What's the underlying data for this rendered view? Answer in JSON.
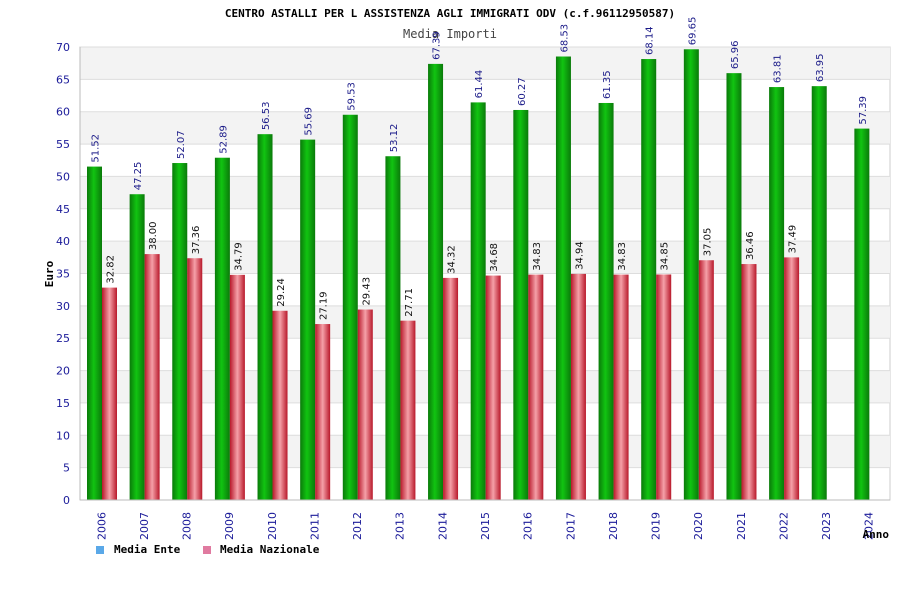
{
  "chart_data": {
    "type": "bar",
    "title": "CENTRO ASTALLI PER L ASSISTENZA AGLI IMMIGRATI ODV (c.f.96112950587)",
    "subtitle": "Media Importi",
    "xlabel": "Anno",
    "ylabel": "Euro",
    "ylim": [
      0,
      70
    ],
    "ytick_step": 5,
    "grid": true,
    "legend_position": "bottom-left",
    "categories": [
      "2006",
      "2007",
      "2008",
      "2009",
      "2010",
      "2011",
      "2012",
      "2013",
      "2014",
      "2015",
      "2016",
      "2017",
      "2018",
      "2019",
      "2020",
      "2021",
      "2022",
      "2023",
      "2024"
    ],
    "series": [
      {
        "name": "Media Ente",
        "values": [
          51.52,
          47.25,
          52.07,
          52.89,
          56.53,
          55.69,
          59.53,
          53.12,
          67.39,
          61.44,
          60.27,
          68.53,
          61.35,
          68.14,
          69.65,
          65.96,
          63.81,
          63.95,
          57.39
        ],
        "labels": [
          "51.52",
          "47.25",
          "52.07",
          "52.89",
          "56.53",
          "55.69",
          "59.53",
          "53.12",
          "67.39",
          "61.44",
          "60.27",
          "68.53",
          "61.35",
          "68.14",
          "69.65",
          "65.96",
          "63.81",
          "63.95",
          "57.39"
        ]
      },
      {
        "name": "Media Nazionale",
        "values": [
          32.82,
          38.0,
          37.36,
          34.79,
          29.24,
          27.19,
          29.43,
          27.71,
          34.32,
          34.68,
          34.83,
          34.94,
          34.83,
          34.85,
          37.05,
          36.46,
          37.49,
          null,
          null
        ],
        "labels": [
          "32.82",
          "38.00",
          "37.36",
          "34.79",
          "29.24",
          "27.19",
          "29.43",
          "27.71",
          "34.32",
          "34.68",
          "34.83",
          "34.94",
          "34.83",
          "34.85",
          "37.05",
          "36.46",
          "37.49",
          null,
          null
        ]
      }
    ],
    "colors": {
      "ente_dark": "#0a7a0a",
      "ente_mid": "#11c411",
      "ente_light": "#55ee55",
      "naz_dark": "#b8182a",
      "naz_mid": "#e23a48",
      "naz_light": "#f5a0a8",
      "legend_ente": "#5aa8e8",
      "legend_naz": "#e07aa0",
      "axis_text": "#1a1a99",
      "label_text": "#1a1a88",
      "title_text": "#000000",
      "subtitle_text": "#444444",
      "band": "#f3f3f3",
      "grid": "#dddddd"
    }
  }
}
